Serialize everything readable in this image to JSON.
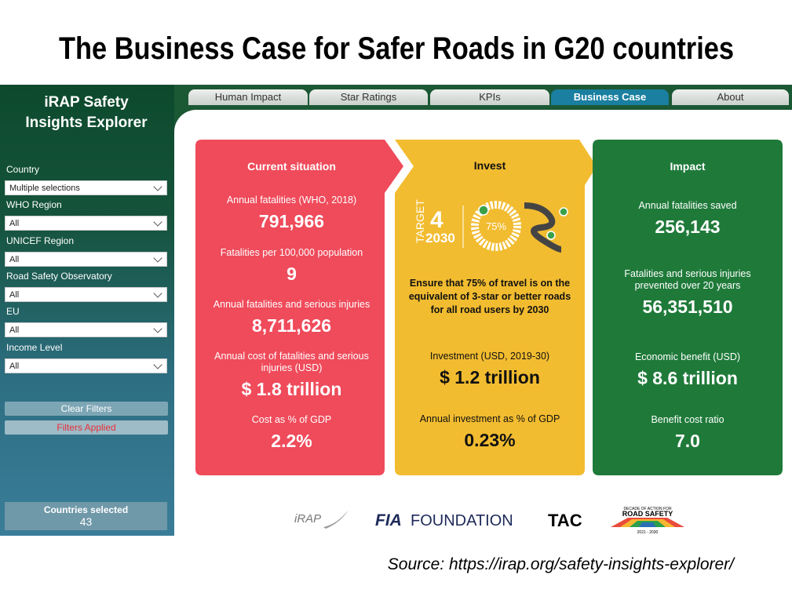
{
  "title": "The Business Case for Safer Roads in G20 countries",
  "sidebar": {
    "app_title": "iRAP Safety Insights Explorer",
    "filters": [
      {
        "label": "Country",
        "value": "Multiple selections"
      },
      {
        "label": "WHO Region",
        "value": "All"
      },
      {
        "label": "UNICEF Region",
        "value": "All"
      },
      {
        "label": "Road Safety Observatory",
        "value": "All"
      },
      {
        "label": "EU",
        "value": "All"
      },
      {
        "label": "Income Level",
        "value": "All"
      }
    ],
    "clear_button": "Clear Filters",
    "status": "Filters Applied",
    "countries_selected": {
      "label": "Countries selected",
      "value": "43"
    }
  },
  "tabs": {
    "items": [
      "Human Impact",
      "Star Ratings",
      "KPIs",
      "Business Case",
      "About"
    ],
    "active": 3
  },
  "panels": {
    "current": {
      "title": "Current situation",
      "metrics": [
        {
          "label": "Annual fatalities (WHO, 2018)",
          "value": "791,966"
        },
        {
          "label": "Fatalities per 100,000 population",
          "value": "9"
        },
        {
          "label": "Annual fatalities and serious injuries",
          "value": "8,711,626"
        },
        {
          "label": "Annual cost of fatalities and serious injuries (USD)",
          "value": "$ 1.8 trillion"
        },
        {
          "label": "Cost as % of GDP",
          "value": "2.2%"
        }
      ]
    },
    "invest": {
      "title": "Invest",
      "graphic": {
        "target": "TARGET",
        "number": "4",
        "year": "2030",
        "percent": "75%"
      },
      "statement": "Ensure that 75% of travel is on the equivalent of 3-star or better roads for all road users by 2030",
      "metrics": [
        {
          "label": "Investment (USD, 2019-30)",
          "value": "$ 1.2 trillion"
        },
        {
          "label": "Annual investment as % of GDP",
          "value": "0.23%"
        }
      ]
    },
    "impact": {
      "title": "Impact",
      "metrics": [
        {
          "label": "Annual fatalities saved",
          "value": "256,143"
        },
        {
          "label": "Fatalities and serious injuries prevented over 20 years",
          "value": "56,351,510"
        },
        {
          "label": "Economic benefit (USD)",
          "value": "$ 8.6 trillion"
        },
        {
          "label": "Benefit cost ratio",
          "value": "7.0"
        }
      ]
    }
  },
  "logos": {
    "irap": "iRAP",
    "fia": "FIA",
    "foundation": "FOUNDATION",
    "tac": "TAC",
    "decade_top": "DECADE OF ACTION FOR",
    "decade_main": "ROAD SAFETY",
    "decade_years": "2021 - 2030"
  },
  "source": "Source: https://irap.org/safety-insights-explorer/"
}
